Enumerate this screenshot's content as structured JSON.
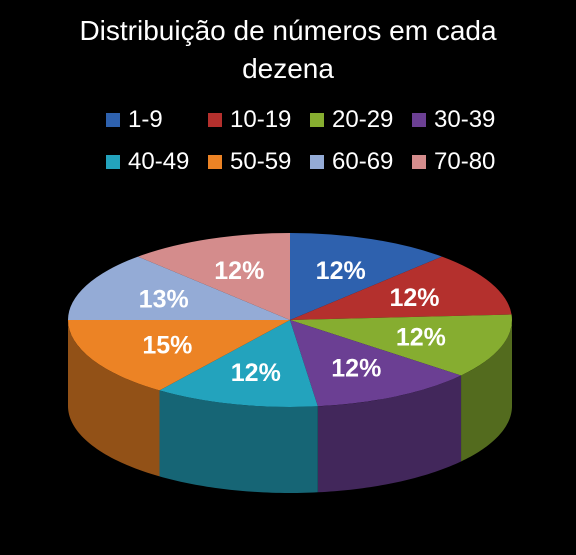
{
  "chart_data": {
    "type": "pie",
    "title_line1": "Distribuição de números em cada",
    "title_line2": "dezena",
    "legend_placement": "top",
    "slices": [
      {
        "label": "1-9",
        "value": 12,
        "display": "12%",
        "color": "#2e61ae"
      },
      {
        "label": "10-19",
        "value": 12,
        "display": "12%",
        "color": "#b4302d"
      },
      {
        "label": "20-29",
        "value": 12,
        "display": "12%",
        "color": "#86ad30"
      },
      {
        "label": "30-39",
        "value": 12,
        "display": "12%",
        "color": "#6b3f93"
      },
      {
        "label": "40-49",
        "value": 12,
        "display": "12%",
        "color": "#23a3bd"
      },
      {
        "label": "50-59",
        "value": 15,
        "display": "15%",
        "color": "#ec8325"
      },
      {
        "label": "60-69",
        "value": 13,
        "display": "13%",
        "color": "#94abd6"
      },
      {
        "label": "70-80",
        "value": 12,
        "display": "12%",
        "color": "#d48c8c"
      }
    ]
  }
}
